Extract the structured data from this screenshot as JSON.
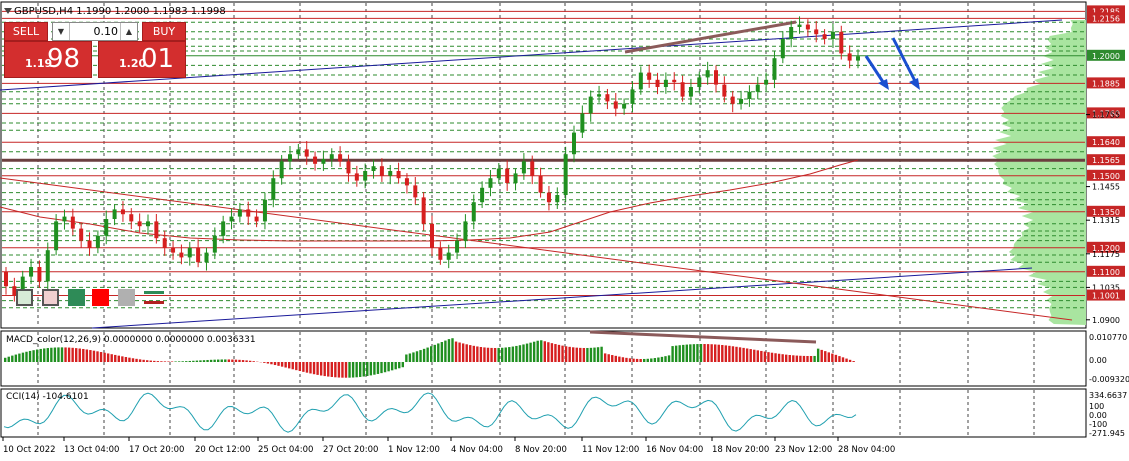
{
  "symbol_info": "GBPUSD,H4  1.1990 1.2000 1.1983 1.1998",
  "trade_panel": {
    "sell_label": "SELL",
    "buy_label": "BUY",
    "lot": "0.10",
    "bid_small": "1.19",
    "bid_big": "98",
    "ask_small": "1.20",
    "ask_big": "01"
  },
  "price_axis_labels": [
    "1.2185",
    "1.2156",
    "1.2000",
    "1.1885",
    "1.1760",
    "1.1755",
    "1.1640",
    "1.1565",
    "1.1500",
    "1.1455",
    "1.1350",
    "1.1315",
    "1.1200",
    "1.1175",
    "1.1100",
    "1.1035",
    "1.1001",
    "1.0900"
  ],
  "highlighted_labels": [
    "1.2185",
    "1.2156",
    "1.2000",
    "1.1885",
    "1.1760",
    "1.1640",
    "1.1565",
    "1.1500",
    "1.1350",
    "1.1200",
    "1.1100",
    "1.1001"
  ],
  "macd": {
    "title": "MACD_color(12,26,9) 0.0000000 0.0000000 0.0036331",
    "axis": [
      "0.010770",
      "0.00",
      "-0.009320"
    ]
  },
  "cci": {
    "title": "CCI(14) -104.6101",
    "axis": [
      "334.6637",
      "100",
      "0.00",
      "-100",
      "-271.945"
    ]
  },
  "time_labels": [
    "10 Oct 2022",
    "13 Oct 04:00",
    "17 Oct 20:00",
    "20 Oct 12:00",
    "25 Oct 04:00",
    "27 Oct 20:00",
    "1 Nov 12:00",
    "4 Nov 04:00",
    "8 Nov 20:00",
    "11 Nov 12:00",
    "16 Nov 04:00",
    "18 Nov 20:00",
    "23 Nov 12:00",
    "28 Nov 04:00"
  ],
  "chart_data": {
    "type": "candlestick",
    "symbol": "GBPUSD",
    "timeframe": "H4",
    "ylim": [
      1.087,
      1.222
    ],
    "closes": [
      1.104,
      1.1,
      1.108,
      1.112,
      1.106,
      1.119,
      1.131,
      1.133,
      1.128,
      1.123,
      1.12,
      1.125,
      1.132,
      1.136,
      1.134,
      1.131,
      1.129,
      1.131,
      1.124,
      1.12,
      1.118,
      1.116,
      1.12,
      1.114,
      1.118,
      1.125,
      1.131,
      1.133,
      1.136,
      1.133,
      1.131,
      1.14,
      1.149,
      1.156,
      1.159,
      1.161,
      1.158,
      1.155,
      1.157,
      1.159,
      1.156,
      1.151,
      1.148,
      1.152,
      1.154,
      1.15,
      1.152,
      1.149,
      1.146,
      1.141,
      1.13,
      1.12,
      1.115,
      1.118,
      1.123,
      1.131,
      1.139,
      1.145,
      1.149,
      1.153,
      1.147,
      1.151,
      1.156,
      1.15,
      1.143,
      1.139,
      1.142,
      1.159,
      1.168,
      1.176,
      1.183,
      1.184,
      1.181,
      1.178,
      1.18,
      1.186,
      1.193,
      1.19,
      1.187,
      1.19,
      1.189,
      1.183,
      1.187,
      1.191,
      1.194,
      1.188,
      1.183,
      1.18,
      1.182,
      1.185,
      1.188,
      1.19,
      1.199,
      1.207,
      1.212,
      1.213,
      1.211,
      1.209,
      1.207,
      1.21,
      1.201,
      1.198,
      1.1998
    ]
  }
}
